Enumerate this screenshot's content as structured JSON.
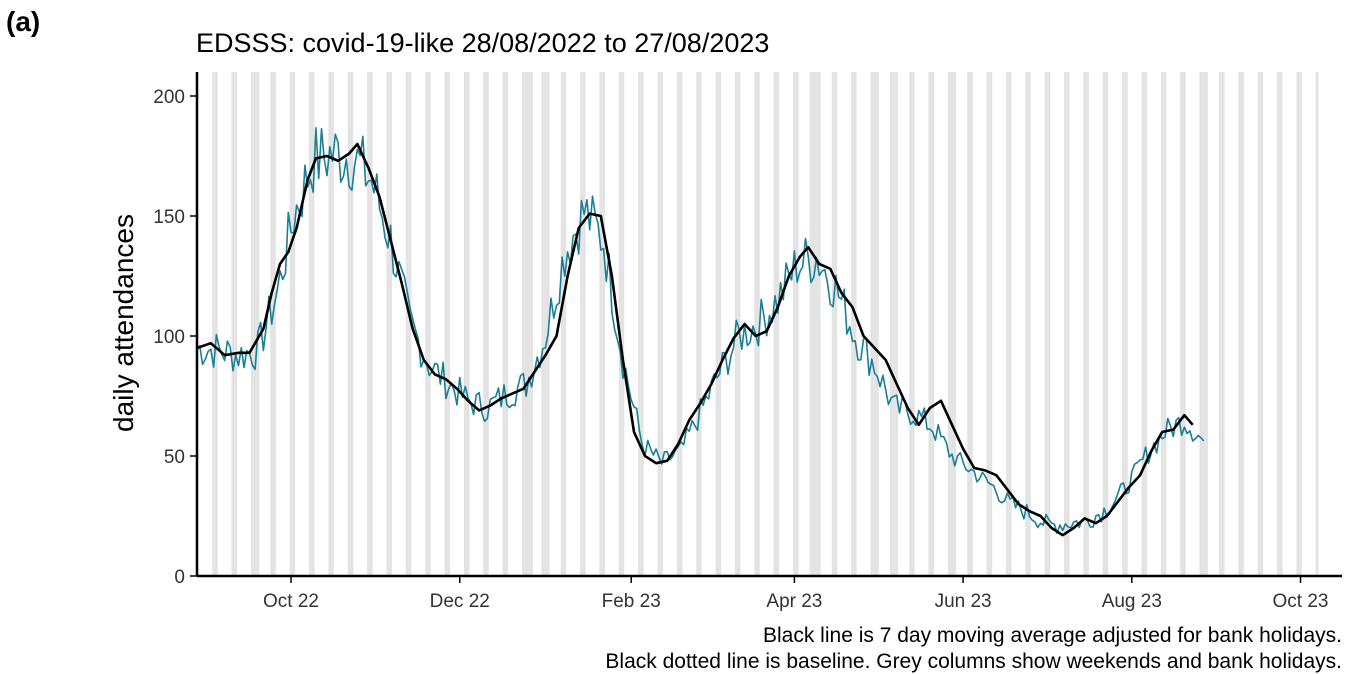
{
  "panel_label": "(a)",
  "captions": [
    "Black line is 7 day moving average adjusted for bank holidays.",
    "Black dotted line is baseline. Grey columns show weekends and bank holidays."
  ],
  "colors": {
    "daily": "#1a7f96",
    "moving_average": "#000000",
    "shade": "#e3e3e3",
    "axis": "#000000"
  },
  "chart_data": {
    "type": "line",
    "title": "EDSSS: covid-19-like 28/08/2022 to 27/08/2023",
    "xlabel": "",
    "ylabel": "daily attendances",
    "ylim": [
      0,
      210
    ],
    "y_ticks": [
      0,
      50,
      100,
      150,
      200
    ],
    "x_range": [
      "2022-08-28",
      "2023-10-16"
    ],
    "x_ticks": [
      {
        "date": "2022-10-01",
        "label": "Oct 22"
      },
      {
        "date": "2022-12-01",
        "label": "Dec 22"
      },
      {
        "date": "2023-02-01",
        "label": "Feb 23"
      },
      {
        "date": "2023-04-01",
        "label": "Apr 23"
      },
      {
        "date": "2023-06-01",
        "label": "Jun 23"
      },
      {
        "date": "2023-08-01",
        "label": "Aug 23"
      },
      {
        "date": "2023-10-01",
        "label": "Oct 23"
      }
    ],
    "shaded_columns": "weekends and bank holidays",
    "bank_holidays": [
      "2022-09-19",
      "2022-12-26",
      "2022-12-27",
      "2023-01-02",
      "2023-04-07",
      "2023-04-10",
      "2023-05-01",
      "2023-05-08",
      "2023-05-29",
      "2023-08-28"
    ],
    "grid": false,
    "legend": "none",
    "series": [
      {
        "key": "daily",
        "x_start": "2022-08-28",
        "x_end": "2023-08-27",
        "anchors": [
          [
            "2022-08-28",
            95
          ],
          [
            "2022-09-05",
            94
          ],
          [
            "2022-09-12",
            92
          ],
          [
            "2022-09-19",
            94
          ],
          [
            "2022-09-26",
            118
          ],
          [
            "2022-10-02",
            150
          ],
          [
            "2022-10-09",
            173
          ],
          [
            "2022-10-16",
            176
          ],
          [
            "2022-10-23",
            175
          ],
          [
            "2022-10-30",
            165
          ],
          [
            "2022-11-06",
            140
          ],
          [
            "2022-11-13",
            105
          ],
          [
            "2022-11-20",
            88
          ],
          [
            "2022-11-27",
            80
          ],
          [
            "2022-12-04",
            73
          ],
          [
            "2022-12-11",
            70
          ],
          [
            "2022-12-18",
            76
          ],
          [
            "2022-12-25",
            80
          ],
          [
            "2023-01-01",
            100
          ],
          [
            "2023-01-08",
            135
          ],
          [
            "2023-01-15",
            152
          ],
          [
            "2023-01-22",
            140
          ],
          [
            "2023-01-29",
            90
          ],
          [
            "2023-02-05",
            55
          ],
          [
            "2023-02-12",
            47
          ],
          [
            "2023-02-19",
            52
          ],
          [
            "2023-02-26",
            68
          ],
          [
            "2023-03-05",
            85
          ],
          [
            "2023-03-12",
            100
          ],
          [
            "2023-03-19",
            105
          ],
          [
            "2023-03-26",
            115
          ],
          [
            "2023-04-02",
            130
          ],
          [
            "2023-04-09",
            133
          ],
          [
            "2023-04-16",
            120
          ],
          [
            "2023-04-23",
            100
          ],
          [
            "2023-04-30",
            88
          ],
          [
            "2023-05-07",
            70
          ],
          [
            "2023-05-14",
            68
          ],
          [
            "2023-05-21",
            62
          ],
          [
            "2023-05-28",
            50
          ],
          [
            "2023-06-04",
            44
          ],
          [
            "2023-06-11",
            38
          ],
          [
            "2023-06-18",
            30
          ],
          [
            "2023-06-25",
            26
          ],
          [
            "2023-07-02",
            21
          ],
          [
            "2023-07-09",
            22
          ],
          [
            "2023-07-16",
            23
          ],
          [
            "2023-07-23",
            28
          ],
          [
            "2023-07-30",
            37
          ],
          [
            "2023-08-06",
            50
          ],
          [
            "2023-08-13",
            60
          ],
          [
            "2023-08-20",
            65
          ],
          [
            "2023-08-27",
            56
          ]
        ],
        "noise_amplitude": 9
      },
      {
        "key": "moving_average",
        "points": [
          [
            "2022-08-28",
            95
          ],
          [
            "2022-09-02",
            97
          ],
          [
            "2022-09-07",
            92
          ],
          [
            "2022-09-12",
            93
          ],
          [
            "2022-09-16",
            93
          ],
          [
            "2022-09-21",
            103
          ],
          [
            "2022-09-24",
            118
          ],
          [
            "2022-09-27",
            130
          ],
          [
            "2022-09-30",
            135
          ],
          [
            "2022-10-03",
            145
          ],
          [
            "2022-10-07",
            165
          ],
          [
            "2022-10-10",
            174
          ],
          [
            "2022-10-14",
            175
          ],
          [
            "2022-10-18",
            173
          ],
          [
            "2022-10-22",
            176
          ],
          [
            "2022-10-25",
            180
          ],
          [
            "2022-10-29",
            170
          ],
          [
            "2022-11-02",
            158
          ],
          [
            "2022-11-06",
            140
          ],
          [
            "2022-11-10",
            122
          ],
          [
            "2022-11-14",
            103
          ],
          [
            "2022-11-18",
            90
          ],
          [
            "2022-11-22",
            84
          ],
          [
            "2022-11-26",
            82
          ],
          [
            "2022-11-30",
            78
          ],
          [
            "2022-12-04",
            73
          ],
          [
            "2022-12-08",
            69
          ],
          [
            "2022-12-12",
            71
          ],
          [
            "2022-12-16",
            74
          ],
          [
            "2022-12-20",
            76
          ],
          [
            "2022-12-24",
            78
          ],
          [
            "2022-12-28",
            85
          ],
          [
            "2023-01-01",
            92
          ],
          [
            "2023-01-05",
            100
          ],
          [
            "2023-01-09",
            125
          ],
          [
            "2023-01-13",
            145
          ],
          [
            "2023-01-17",
            151
          ],
          [
            "2023-01-21",
            150
          ],
          [
            "2023-01-25",
            125
          ],
          [
            "2023-01-29",
            90
          ],
          [
            "2023-02-02",
            60
          ],
          [
            "2023-02-06",
            50
          ],
          [
            "2023-02-10",
            47
          ],
          [
            "2023-02-14",
            48
          ],
          [
            "2023-02-18",
            55
          ],
          [
            "2023-02-22",
            65
          ],
          [
            "2023-02-26",
            72
          ],
          [
            "2023-03-02",
            80
          ],
          [
            "2023-03-06",
            90
          ],
          [
            "2023-03-10",
            99
          ],
          [
            "2023-03-14",
            105
          ],
          [
            "2023-03-18",
            100
          ],
          [
            "2023-03-22",
            102
          ],
          [
            "2023-03-26",
            112
          ],
          [
            "2023-03-30",
            125
          ],
          [
            "2023-04-03",
            133
          ],
          [
            "2023-04-06",
            137
          ],
          [
            "2023-04-10",
            130
          ],
          [
            "2023-04-14",
            128
          ],
          [
            "2023-04-18",
            118
          ],
          [
            "2023-04-22",
            112
          ],
          [
            "2023-04-26",
            100
          ],
          [
            "2023-04-30",
            95
          ],
          [
            "2023-05-04",
            90
          ],
          [
            "2023-05-08",
            80
          ],
          [
            "2023-05-12",
            70
          ],
          [
            "2023-05-16",
            63
          ],
          [
            "2023-05-20",
            70
          ],
          [
            "2023-05-24",
            73
          ],
          [
            "2023-05-28",
            63
          ],
          [
            "2023-06-01",
            53
          ],
          [
            "2023-06-05",
            45
          ],
          [
            "2023-06-09",
            44
          ],
          [
            "2023-06-13",
            42
          ],
          [
            "2023-06-17",
            36
          ],
          [
            "2023-06-21",
            30
          ],
          [
            "2023-06-25",
            27
          ],
          [
            "2023-06-29",
            25
          ],
          [
            "2023-07-03",
            20
          ],
          [
            "2023-07-07",
            17
          ],
          [
            "2023-07-11",
            20
          ],
          [
            "2023-07-15",
            24
          ],
          [
            "2023-07-19",
            22
          ],
          [
            "2023-07-23",
            25
          ],
          [
            "2023-07-27",
            31
          ],
          [
            "2023-07-31",
            37
          ],
          [
            "2023-08-04",
            42
          ],
          [
            "2023-08-08",
            52
          ],
          [
            "2023-08-12",
            60
          ],
          [
            "2023-08-16",
            61
          ],
          [
            "2023-08-20",
            67
          ],
          [
            "2023-08-23",
            63
          ]
        ]
      }
    ]
  }
}
